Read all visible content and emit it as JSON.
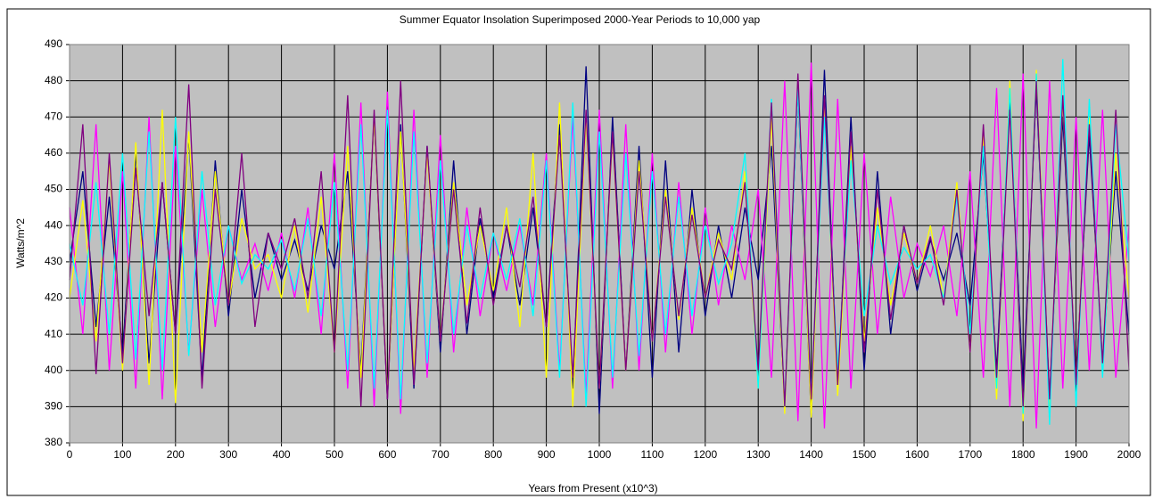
{
  "chart_data": {
    "type": "line",
    "title": "Summer Equator Insolation Superimposed 2000-Year Periods to 10,000 yap",
    "x_label": "Years from Present (x10^3)",
    "y_label": "Watts/m^2",
    "xlim": [
      0,
      2000
    ],
    "ylim": [
      380,
      490
    ],
    "xticks": [
      0,
      100,
      200,
      300,
      400,
      500,
      600,
      700,
      800,
      900,
      1000,
      1100,
      1200,
      1300,
      1400,
      1500,
      1600,
      1700,
      1800,
      1900,
      2000
    ],
    "yticks": [
      380,
      390,
      400,
      410,
      420,
      430,
      440,
      450,
      460,
      470,
      480,
      490
    ],
    "grid": true,
    "background": "#c0c0c0",
    "x": [
      0,
      25,
      50,
      75,
      100,
      125,
      150,
      175,
      200,
      225,
      250,
      275,
      300,
      325,
      350,
      375,
      400,
      425,
      450,
      475,
      500,
      525,
      550,
      575,
      600,
      625,
      650,
      675,
      700,
      725,
      750,
      775,
      800,
      825,
      850,
      875,
      900,
      925,
      950,
      975,
      1000,
      1025,
      1050,
      1075,
      1100,
      1125,
      1150,
      1175,
      1200,
      1225,
      1250,
      1275,
      1300,
      1325,
      1350,
      1375,
      1400,
      1425,
      1450,
      1475,
      1500,
      1525,
      1550,
      1575,
      1600,
      1625,
      1650,
      1675,
      1700,
      1725,
      1750,
      1775,
      1800,
      1825,
      1850,
      1875,
      1900,
      1925,
      1950,
      1975,
      2000
    ],
    "series": [
      {
        "color": "#000080",
        "values": [
          430,
          455,
          412,
          448,
          405,
          460,
          402,
          452,
          410,
          465,
          398,
          458,
          415,
          450,
          420,
          438,
          425,
          436,
          422,
          440,
          428,
          455,
          400,
          470,
          392,
          468,
          395,
          462,
          405,
          458,
          410,
          442,
          420,
          440,
          418,
          445,
          412,
          468,
          395,
          484,
          388,
          470,
          400,
          462,
          398,
          458,
          405,
          450,
          415,
          440,
          420,
          445,
          425,
          462,
          390,
          478,
          387,
          483,
          395,
          470,
          400,
          455,
          410,
          440,
          422,
          436,
          425,
          438,
          418,
          460,
          400,
          475,
          395,
          478,
          392,
          470,
          398,
          465,
          402,
          455,
          410
        ]
      },
      {
        "color": "#ff00ff",
        "values": [
          445,
          410,
          468,
          400,
          455,
          395,
          470,
          392,
          462,
          405,
          450,
          412,
          440,
          425,
          435,
          422,
          438,
          420,
          445,
          410,
          460,
          395,
          474,
          390,
          477,
          388,
          472,
          398,
          465,
          405,
          445,
          415,
          438,
          422,
          440,
          418,
          460,
          400,
          470,
          393,
          472,
          395,
          468,
          400,
          460,
          405,
          452,
          410,
          445,
          418,
          440,
          425,
          450,
          398,
          480,
          386,
          485,
          384,
          475,
          395,
          460,
          410,
          448,
          420,
          435,
          426,
          440,
          415,
          455,
          398,
          478,
          390,
          482,
          384,
          480,
          395,
          470,
          400,
          472,
          398,
          440
        ]
      },
      {
        "color": "#ffff00",
        "values": [
          420,
          447,
          408,
          458,
          400,
          463,
          396,
          472,
          391,
          466,
          405,
          455,
          418,
          442,
          428,
          432,
          420,
          440,
          416,
          448,
          405,
          462,
          398,
          470,
          393,
          466,
          400,
          460,
          408,
          452,
          418,
          440,
          422,
          445,
          412,
          460,
          398,
          474,
          390,
          470,
          395,
          465,
          400,
          458,
          408,
          450,
          414,
          445,
          420,
          438,
          425,
          455,
          395,
          470,
          388,
          480,
          387,
          475,
          393,
          462,
          408,
          445,
          418,
          438,
          424,
          440,
          420,
          452,
          405,
          465,
          392,
          480,
          386,
          483,
          390,
          475,
          396,
          470,
          400,
          460,
          420
        ]
      },
      {
        "color": "#00ffff",
        "values": [
          435,
          418,
          452,
          410,
          460,
          403,
          466,
          400,
          470,
          404,
          455,
          418,
          440,
          424,
          432,
          428,
          436,
          422,
          442,
          415,
          452,
          400,
          468,
          395,
          472,
          392,
          466,
          402,
          458,
          410,
          440,
          420,
          438,
          425,
          442,
          415,
          458,
          398,
          474,
          390,
          466,
          398,
          460,
          404,
          455,
          410,
          448,
          415,
          440,
          424,
          435,
          460,
          395,
          475,
          390,
          478,
          393,
          470,
          400,
          458,
          415,
          440,
          424,
          434,
          428,
          432,
          420,
          448,
          410,
          462,
          395,
          478,
          388,
          482,
          385,
          486,
          390,
          475,
          398,
          468,
          430
        ]
      },
      {
        "color": "#800080",
        "values": [
          425,
          468,
          399,
          460,
          402,
          456,
          415,
          452,
          410,
          479,
          395,
          450,
          418,
          460,
          412,
          438,
          428,
          442,
          420,
          455,
          405,
          476,
          390,
          472,
          392,
          480,
          396,
          462,
          408,
          450,
          413,
          445,
          418,
          440,
          423,
          448,
          412,
          465,
          398,
          472,
          395,
          466,
          400,
          455,
          408,
          448,
          415,
          443,
          420,
          436,
          428,
          452,
          400,
          474,
          390,
          482,
          392,
          476,
          396,
          466,
          405,
          450,
          414,
          440,
          424,
          437,
          418,
          450,
          405,
          468,
          398,
          472,
          390,
          480,
          392,
          476,
          396,
          468,
          402,
          472,
          400
        ]
      }
    ]
  }
}
